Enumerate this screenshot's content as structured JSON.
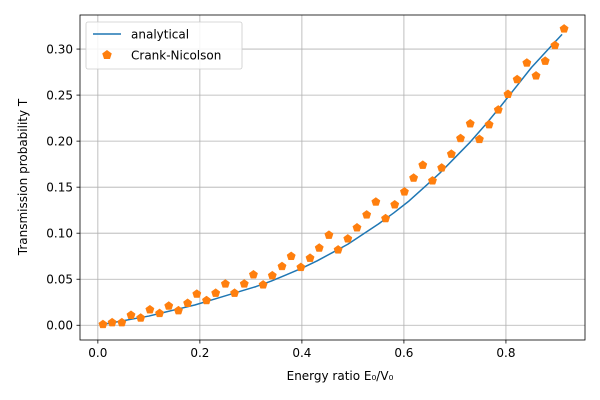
{
  "chart_data": {
    "type": "line",
    "title": "",
    "xlabel": "Energy ratio E₀/V₀",
    "ylabel": "Transmission probability T",
    "xlim": [
      -0.035,
      0.955
    ],
    "ylim": [
      -0.016,
      0.337
    ],
    "x_ticks": [
      0.0,
      0.2,
      0.4,
      0.6,
      0.8
    ],
    "x_tick_labels": [
      "0.0",
      "0.2",
      "0.4",
      "0.6",
      "0.8"
    ],
    "y_ticks": [
      0.0,
      0.05,
      0.1,
      0.15,
      0.2,
      0.25,
      0.3
    ],
    "y_tick_labels": [
      "0.00",
      "0.05",
      "0.10",
      "0.15",
      "0.20",
      "0.25",
      "0.30"
    ],
    "grid": true,
    "legend_position": "upper-left",
    "series": [
      {
        "name": "analytical",
        "kind": "line",
        "color": "#1f77b4",
        "x": [
          0.01,
          0.04,
          0.07,
          0.1,
          0.13,
          0.16,
          0.19,
          0.22,
          0.25,
          0.28,
          0.31,
          0.34,
          0.37,
          0.4,
          0.43,
          0.46,
          0.49,
          0.52,
          0.55,
          0.58,
          0.61,
          0.64,
          0.67,
          0.7,
          0.73,
          0.76,
          0.79,
          0.82,
          0.85,
          0.88,
          0.91
        ],
        "y": [
          0.001,
          0.004,
          0.007,
          0.01,
          0.014,
          0.018,
          0.022,
          0.027,
          0.032,
          0.037,
          0.042,
          0.048,
          0.055,
          0.062,
          0.07,
          0.079,
          0.088,
          0.099,
          0.11,
          0.122,
          0.135,
          0.15,
          0.165,
          0.182,
          0.199,
          0.218,
          0.238,
          0.259,
          0.28,
          0.298,
          0.316
        ]
      },
      {
        "name": "Crank-Nicolson",
        "kind": "marker",
        "marker": "pentagon",
        "color": "#ff7f0e",
        "x": [
          0.01,
          0.028,
          0.047,
          0.065,
          0.084,
          0.102,
          0.121,
          0.139,
          0.158,
          0.176,
          0.194,
          0.213,
          0.231,
          0.25,
          0.268,
          0.287,
          0.305,
          0.324,
          0.342,
          0.361,
          0.379,
          0.398,
          0.416,
          0.434,
          0.453,
          0.471,
          0.49,
          0.508,
          0.527,
          0.545,
          0.564,
          0.582,
          0.601,
          0.619,
          0.637,
          0.656,
          0.674,
          0.693,
          0.711,
          0.73,
          0.748,
          0.767,
          0.785,
          0.804,
          0.822,
          0.841,
          0.859,
          0.877,
          0.896,
          0.914
        ],
        "y": [
          0.001,
          0.003,
          0.003,
          0.011,
          0.008,
          0.017,
          0.013,
          0.021,
          0.016,
          0.024,
          0.034,
          0.027,
          0.035,
          0.045,
          0.035,
          0.045,
          0.055,
          0.044,
          0.054,
          0.064,
          0.075,
          0.063,
          0.073,
          0.084,
          0.098,
          0.082,
          0.094,
          0.106,
          0.12,
          0.134,
          0.116,
          0.131,
          0.145,
          0.16,
          0.174,
          0.157,
          0.171,
          0.186,
          0.203,
          0.219,
          0.202,
          0.218,
          0.234,
          0.251,
          0.267,
          0.285,
          0.271,
          0.287,
          0.304,
          0.322
        ]
      }
    ]
  }
}
